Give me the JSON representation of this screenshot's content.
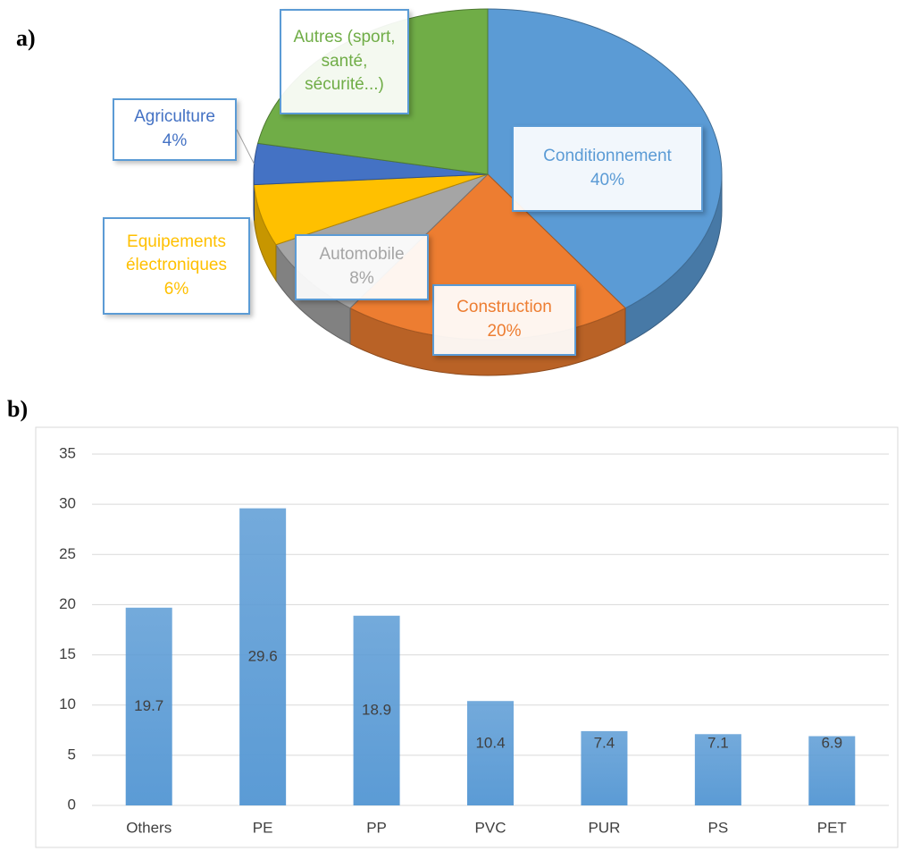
{
  "chart_data": [
    {
      "type": "pie",
      "panel_label": "a)",
      "categories": [
        "Conditionnement",
        "Construction",
        "Automobile",
        "Equipements électroniques",
        "Agriculture",
        "Autres (sport, santé, sécurité...)"
      ],
      "values": [
        40,
        20,
        8,
        6,
        4,
        22
      ],
      "value_labels": [
        "40%",
        "20%",
        "8%",
        "6%",
        "4%",
        null
      ],
      "colors": [
        "#5b9bd5",
        "#ed7d31",
        "#a5a5a5",
        "#ffc000",
        "#4472c4",
        "#70ad47"
      ]
    },
    {
      "type": "bar",
      "panel_label": "b)",
      "categories": [
        "Others",
        "PE",
        "PP",
        "PVC",
        "PUR",
        "PS",
        "PET"
      ],
      "values": [
        19.7,
        29.6,
        18.9,
        10.4,
        7.4,
        7.1,
        6.9
      ],
      "color": "#5b9bd5",
      "ylim": [
        0,
        35
      ],
      "yticks": [
        0,
        5,
        10,
        15,
        20,
        25,
        30,
        35
      ],
      "grid": true
    }
  ]
}
